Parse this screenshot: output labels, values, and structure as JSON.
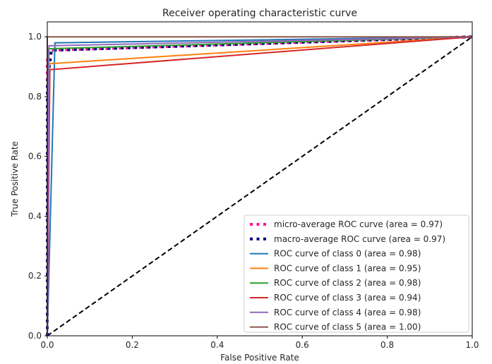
{
  "chart_data": {
    "type": "line",
    "title": "Receiver operating characteristic curve",
    "xlabel": "False Positive Rate",
    "ylabel": "True Positive Rate",
    "xlim": [
      0,
      1
    ],
    "ylim": [
      0,
      1.05
    ],
    "xticks": [
      "0.0",
      "0.2",
      "0.4",
      "0.6",
      "0.8",
      "1.0"
    ],
    "yticks": [
      "0.0",
      "0.2",
      "0.4",
      "0.6",
      "0.8",
      "1.0"
    ],
    "grid": false,
    "legend_position": "lower-right",
    "series": [
      {
        "name": "micro-average ROC curve (area = 0.97)",
        "color": "#ff1493",
        "style": "dotted-thick",
        "x": [
          0,
          0.0,
          0.005,
          1.0
        ],
        "y": [
          0,
          0.92,
          0.955,
          1.0
        ]
      },
      {
        "name": "macro-average ROC curve (area = 0.97)",
        "color": "#000080",
        "style": "dotted-thick",
        "x": [
          0,
          0.0,
          0.01,
          1.0
        ],
        "y": [
          0,
          0.85,
          0.955,
          1.0
        ]
      },
      {
        "name": "ROC curve of class 0 (area = 0.98)",
        "color": "#1f77b4",
        "style": "solid",
        "x": [
          0,
          0.018,
          1.0
        ],
        "y": [
          0,
          0.98,
          1.0
        ]
      },
      {
        "name": "ROC curve of class 1 (area = 0.95)",
        "color": "#ff7f0e",
        "style": "solid",
        "x": [
          0,
          0.005,
          1.0
        ],
        "y": [
          0,
          0.91,
          1.0
        ]
      },
      {
        "name": "ROC curve of class 2 (area = 0.98)",
        "color": "#2ca02c",
        "style": "solid",
        "x": [
          0,
          0.003,
          1.0
        ],
        "y": [
          0,
          0.96,
          1.0
        ]
      },
      {
        "name": "ROC curve of class 3 (area = 0.94)",
        "color": "#d62728",
        "style": "solid",
        "x": [
          0,
          0.006,
          1.0
        ],
        "y": [
          0,
          0.89,
          1.0
        ]
      },
      {
        "name": "ROC curve of class 4 (area = 0.98)",
        "color": "#9467bd",
        "style": "solid",
        "x": [
          0,
          0.004,
          1.0
        ],
        "y": [
          0,
          0.97,
          1.0
        ]
      },
      {
        "name": "ROC curve of class 5 (area = 1.00)",
        "color": "#8c564b",
        "style": "solid",
        "x": [
          0,
          0.0,
          1.0
        ],
        "y": [
          0,
          1.0,
          1.0
        ]
      }
    ],
    "reference_line": {
      "color": "#000000",
      "style": "dashed",
      "x": [
        0,
        1
      ],
      "y": [
        0,
        1
      ]
    }
  }
}
